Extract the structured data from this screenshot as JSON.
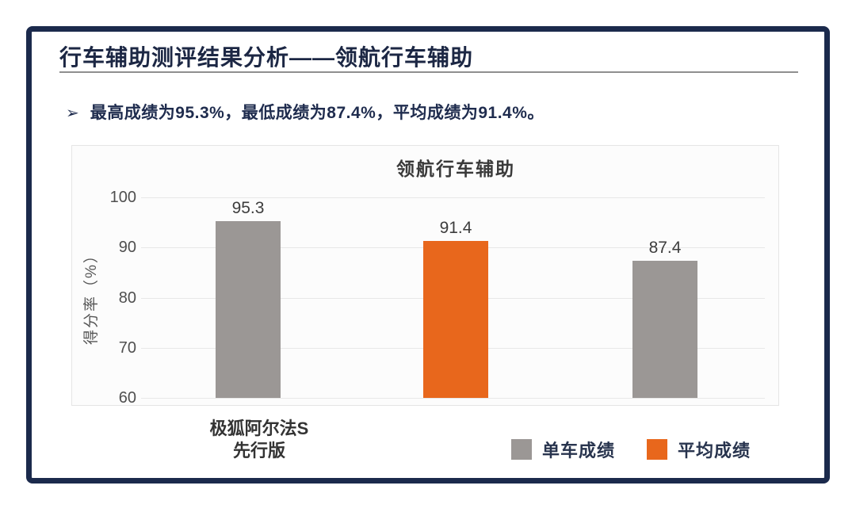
{
  "slide": {
    "title": "行车辅助测评结果分析——领航行车辅助",
    "bullet_marker": "➢",
    "bullet": "最高成绩为95.3%，最低成绩为87.4%，平均成绩为91.4%。"
  },
  "chart_data": {
    "type": "bar",
    "title": "领航行车辅助",
    "ylabel": "得分率（%）",
    "ylim": [
      60,
      100
    ],
    "yticks": [
      100,
      90,
      80,
      70,
      60
    ],
    "grid": true,
    "legend_position": "bottom-right",
    "categories": [
      "极狐阿尔法S\n先行版",
      "",
      ""
    ],
    "bars": [
      {
        "label": "极狐阿尔法S\n先行版",
        "series": "单车成绩",
        "value": 95.3,
        "color": "#9b9795"
      },
      {
        "label": "",
        "series": "平均成绩",
        "value": 91.4,
        "color": "#e8671c"
      },
      {
        "label": "",
        "series": "单车成绩",
        "value": 87.4,
        "color": "#9b9795"
      }
    ],
    "legend": [
      {
        "label": "单车成绩",
        "color": "#9b9795"
      },
      {
        "label": "平均成绩",
        "color": "#e8671c"
      }
    ],
    "colors": {
      "single_car": "#9b9795",
      "average": "#e8671c"
    }
  }
}
